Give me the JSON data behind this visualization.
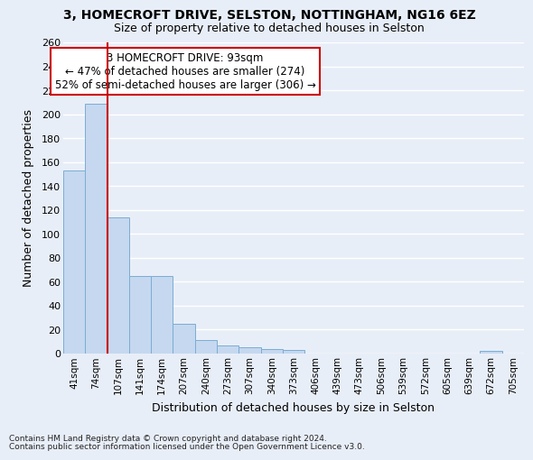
{
  "title1": "3, HOMECROFT DRIVE, SELSTON, NOTTINGHAM, NG16 6EZ",
  "title2": "Size of property relative to detached houses in Selston",
  "xlabel": "Distribution of detached houses by size in Selston",
  "ylabel": "Number of detached properties",
  "footer1": "Contains HM Land Registry data © Crown copyright and database right 2024.",
  "footer2": "Contains public sector information licensed under the Open Government Licence v3.0.",
  "bin_labels": [
    "41sqm",
    "74sqm",
    "107sqm",
    "141sqm",
    "174sqm",
    "207sqm",
    "240sqm",
    "273sqm",
    "307sqm",
    "340sqm",
    "373sqm",
    "406sqm",
    "439sqm",
    "473sqm",
    "506sqm",
    "539sqm",
    "572sqm",
    "605sqm",
    "639sqm",
    "672sqm",
    "705sqm"
  ],
  "bar_values": [
    153,
    209,
    114,
    65,
    65,
    25,
    11,
    7,
    5,
    4,
    3,
    0,
    0,
    0,
    0,
    0,
    0,
    0,
    0,
    2,
    0
  ],
  "bar_color": "#c5d8ef",
  "bar_edge_color": "#7badd4",
  "background_color": "#e8eef8",
  "grid_color": "#ffffff",
  "vline_color": "#cc0000",
  "annotation_text": "3 HOMECROFT DRIVE: 93sqm\n← 47% of detached houses are smaller (274)\n52% of semi-detached houses are larger (306) →",
  "annotation_box_color": "#ffffff",
  "annotation_box_edge_color": "#cc0000",
  "ylim": [
    0,
    260
  ],
  "yticks": [
    0,
    20,
    40,
    60,
    80,
    100,
    120,
    140,
    160,
    180,
    200,
    220,
    240,
    260
  ]
}
